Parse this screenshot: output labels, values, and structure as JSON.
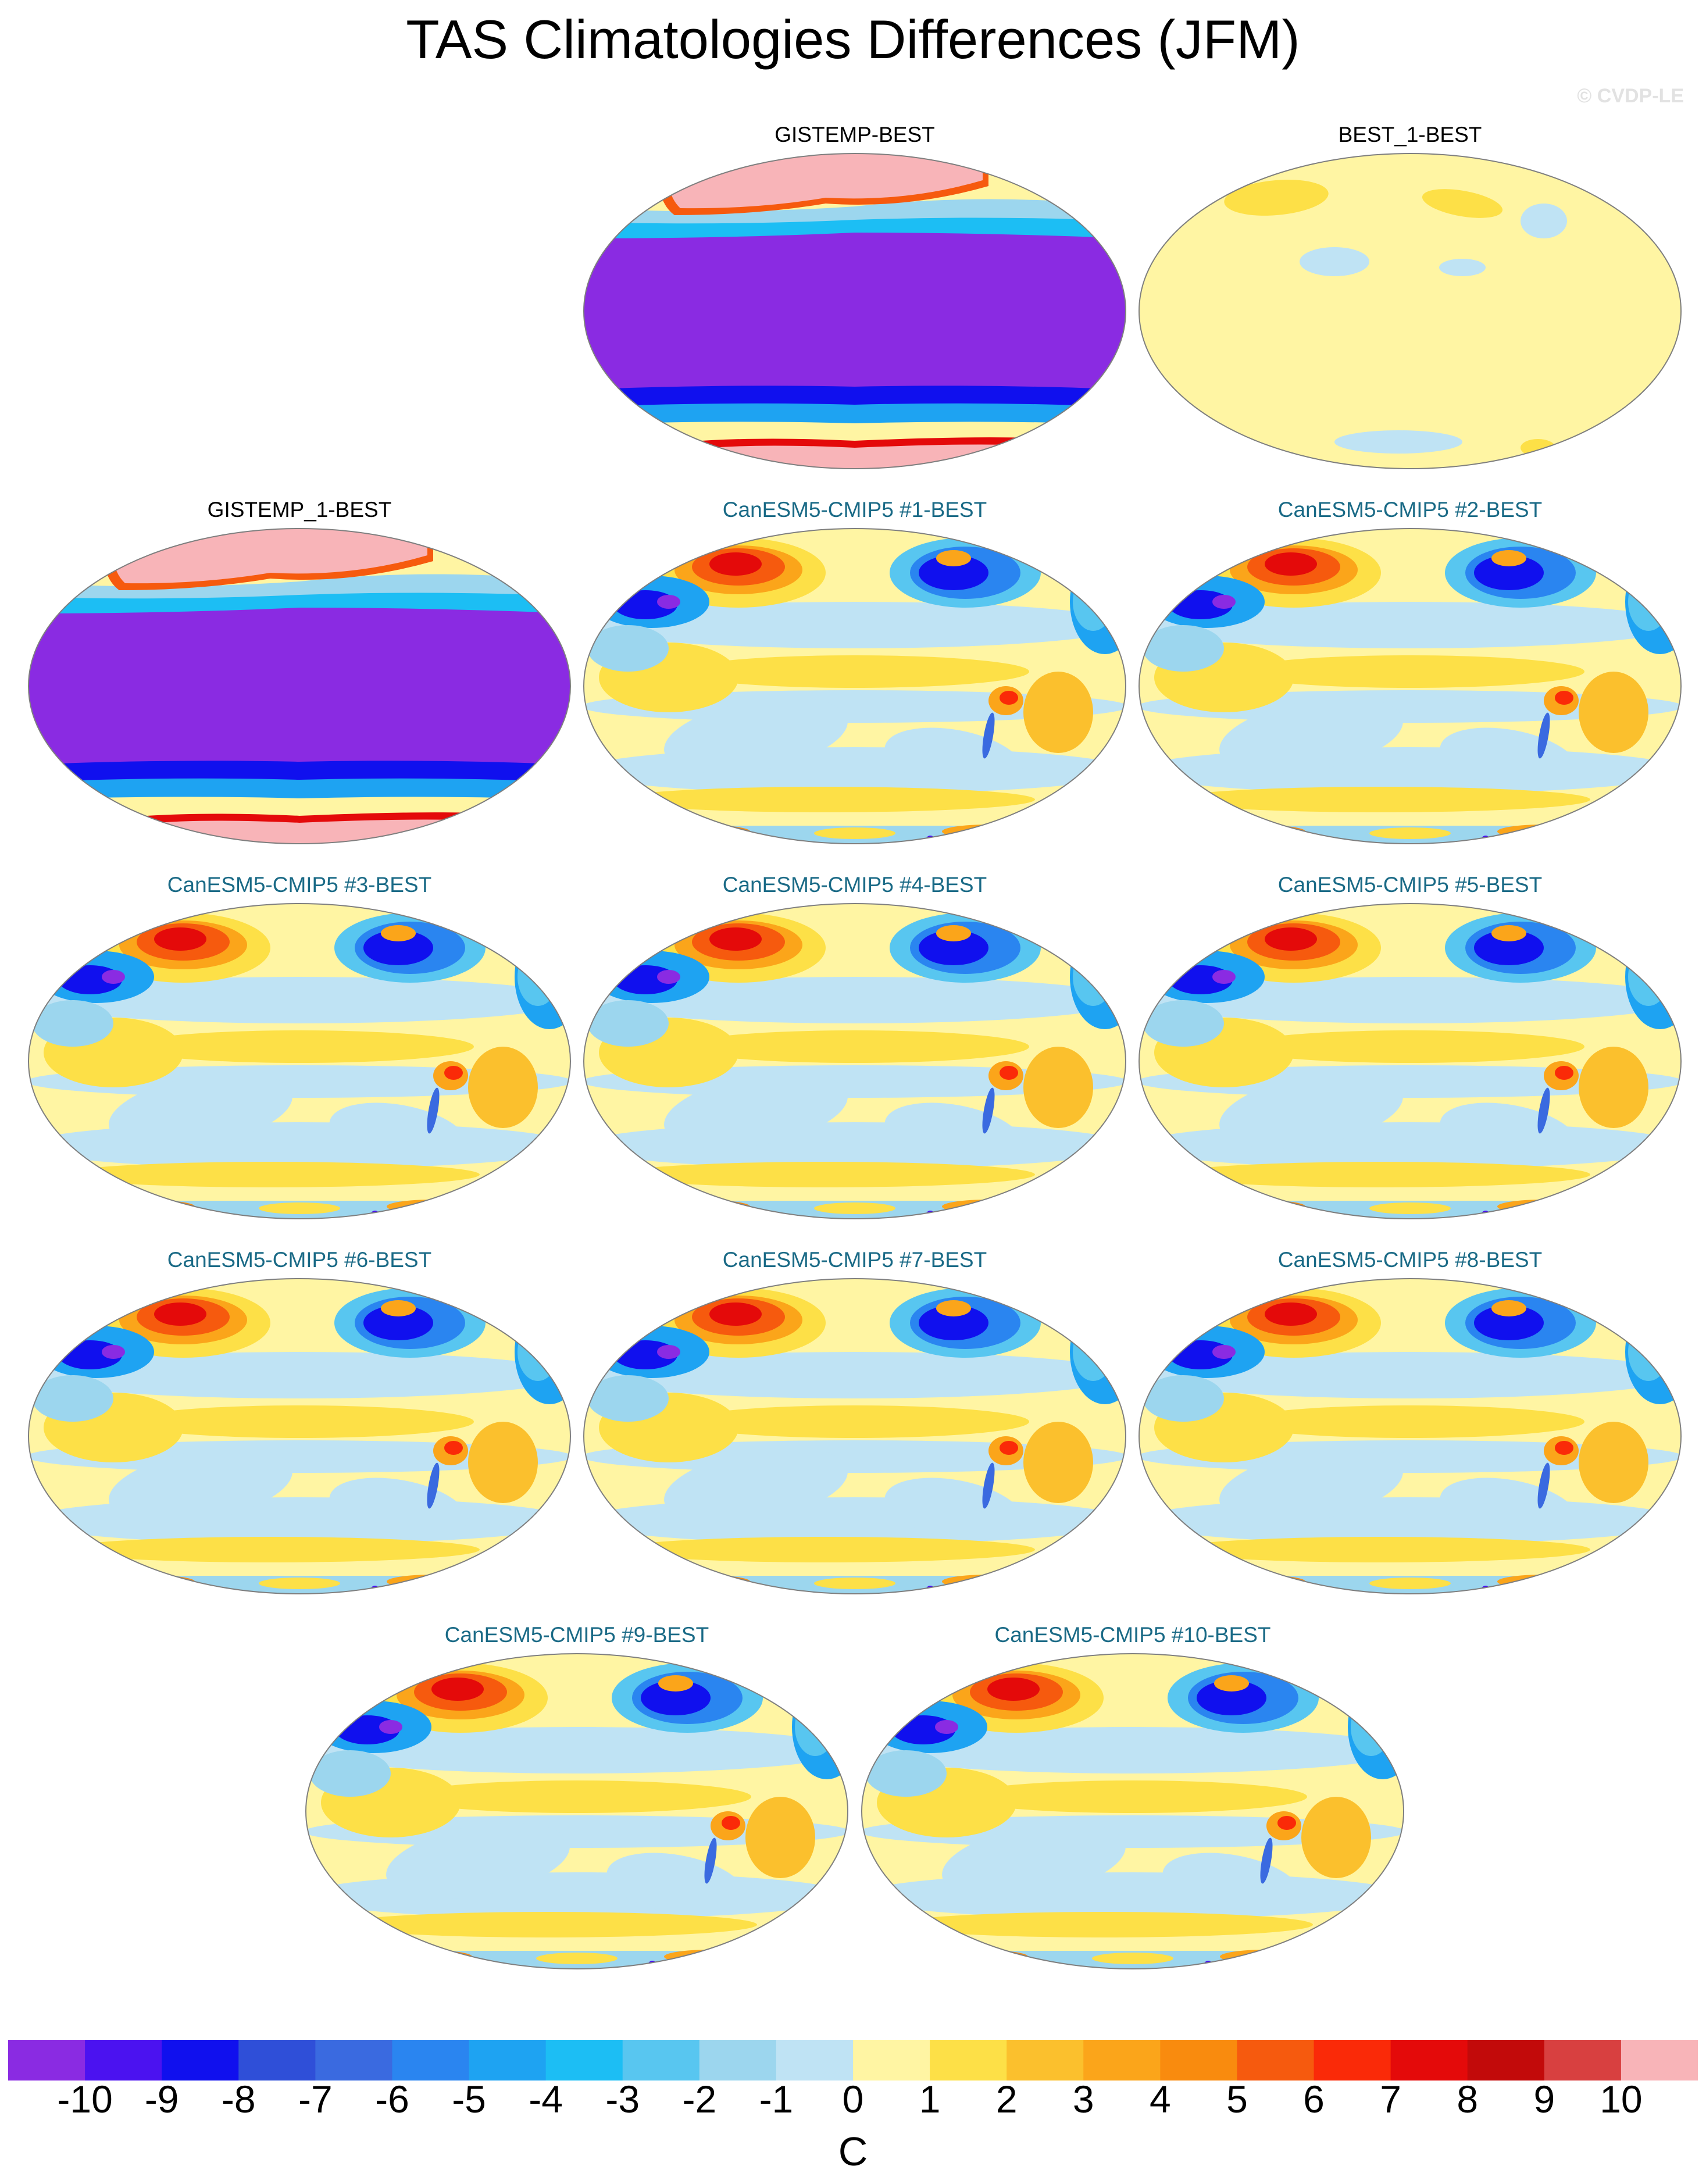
{
  "title": "TAS Climatologies Differences (JFM)",
  "watermark": "© CVDP-LE",
  "panels": [
    {
      "title": "GISTEMP-BEST",
      "kind": "obs",
      "pattern": "gistemp"
    },
    {
      "title": "BEST_1-BEST",
      "kind": "obs",
      "pattern": "near-zero"
    },
    {
      "title": "GISTEMP_1-BEST",
      "kind": "obs",
      "pattern": "gistemp"
    },
    {
      "title": "CanESM5-CMIP5 #1-BEST",
      "kind": "model",
      "pattern": "model"
    },
    {
      "title": "CanESM5-CMIP5 #2-BEST",
      "kind": "model",
      "pattern": "model"
    },
    {
      "title": "CanESM5-CMIP5 #3-BEST",
      "kind": "model",
      "pattern": "model"
    },
    {
      "title": "CanESM5-CMIP5 #4-BEST",
      "kind": "model",
      "pattern": "model"
    },
    {
      "title": "CanESM5-CMIP5 #5-BEST",
      "kind": "model",
      "pattern": "model"
    },
    {
      "title": "CanESM5-CMIP5 #6-BEST",
      "kind": "model",
      "pattern": "model"
    },
    {
      "title": "CanESM5-CMIP5 #7-BEST",
      "kind": "model",
      "pattern": "model"
    },
    {
      "title": "CanESM5-CMIP5 #8-BEST",
      "kind": "model",
      "pattern": "model"
    },
    {
      "title": "CanESM5-CMIP5 #9-BEST",
      "kind": "model",
      "pattern": "model"
    },
    {
      "title": "CanESM5-CMIP5 #10-BEST",
      "kind": "model",
      "pattern": "model"
    }
  ],
  "colorbar": {
    "labels": [
      "-10",
      "-9",
      "-8",
      "-7",
      "-6",
      "-5",
      "-4",
      "-3",
      "-2",
      "-1",
      "0",
      "1",
      "2",
      "3",
      "4",
      "5",
      "6",
      "7",
      "8",
      "9",
      "10"
    ],
    "colors": [
      "#8a2be2",
      "#4b12f0",
      "#1010ee",
      "#2f4fd8",
      "#3a6ae0",
      "#2a85f0",
      "#1ea3f2",
      "#1cbef4",
      "#58c6f0",
      "#9cd6ee",
      "#bfe3f4",
      "#fff5a3",
      "#fde047",
      "#fbc02d",
      "#fba51a",
      "#f98b0e",
      "#f65a0e",
      "#fa2a08",
      "#e40a0a",
      "#c20a0a",
      "#d84040",
      "#f8b4b8"
    ],
    "units": "C"
  },
  "chart_data": {
    "type": "heatmap",
    "title": "TAS Climatologies Differences (JFM)",
    "projection": "Robinson, Pacific-centered",
    "color_levels": [
      -10,
      -9,
      -8,
      -7,
      -6,
      -5,
      -4,
      -3,
      -2,
      -1,
      0,
      1,
      2,
      3,
      4,
      5,
      6,
      7,
      8,
      9,
      10
    ],
    "units": "C",
    "panels": [
      "GISTEMP-BEST",
      "BEST_1-BEST",
      "GISTEMP_1-BEST",
      "CanESM5-CMIP5 #1-BEST",
      "CanESM5-CMIP5 #2-BEST",
      "CanESM5-CMIP5 #3-BEST",
      "CanESM5-CMIP5 #4-BEST",
      "CanESM5-CMIP5 #5-BEST",
      "CanESM5-CMIP5 #6-BEST",
      "CanESM5-CMIP5 #7-BEST",
      "CanESM5-CMIP5 #8-BEST",
      "CanESM5-CMIP5 #9-BEST",
      "CanESM5-CMIP5 #10-BEST"
    ]
  }
}
